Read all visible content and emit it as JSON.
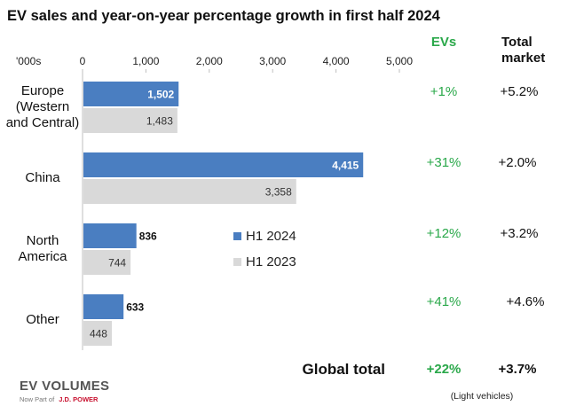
{
  "chart_data": {
    "type": "bar",
    "orientation": "horizontal",
    "title": "EV sales and year-on-year percentage growth in first half 2024",
    "units_label": "'000s",
    "xlim": [
      0,
      5000
    ],
    "x_ticks": [
      0,
      1000,
      2000,
      3000,
      4000,
      5000
    ],
    "x_tick_labels": [
      "0",
      "1,000",
      "2,000",
      "3,000",
      "4,000",
      "5,000"
    ],
    "categories": [
      [
        "Europe",
        "(Western",
        "and Central)"
      ],
      [
        "China"
      ],
      [
        "North",
        "America"
      ],
      [
        "Other"
      ]
    ],
    "series": [
      {
        "name": "H1 2024",
        "color": "#4a7ec1",
        "values": [
          1502,
          4415,
          836,
          633
        ],
        "labels": [
          "1,502",
          "4,415",
          "836",
          "633"
        ]
      },
      {
        "name": "H1 2023",
        "color": "#d9d9d9",
        "values": [
          1483,
          3358,
          744,
          448
        ],
        "labels": [
          "1,483",
          "3,358",
          "744",
          "448"
        ]
      }
    ],
    "legend_position": "center-right",
    "growth_table": {
      "ev_header": "EVs",
      "total_header": [
        "Total",
        "market"
      ],
      "ev_growth": [
        "+1%",
        "+31%",
        "+12%",
        "+41%"
      ],
      "total_growth": [
        "+5.2%",
        "+2.0%",
        "+3.2%",
        "+4.6%"
      ],
      "global_label": "Global total",
      "global_ev": "+22%",
      "global_total": "+3.7%",
      "footnote": "(Light vehicles)"
    },
    "colors": {
      "ev_growth": "#2aa84a",
      "axis": "#bfbfbf"
    }
  },
  "branding": {
    "logo": "EV VOLUMES",
    "tagline_prefix": "Now Part of",
    "tagline_brand": "J.D. POWER"
  }
}
